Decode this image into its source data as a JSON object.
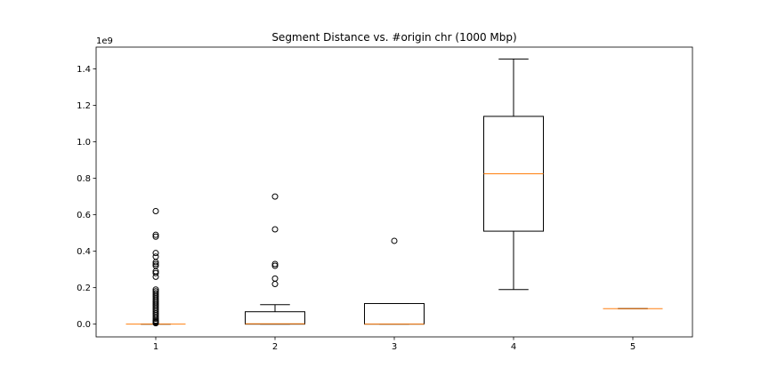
{
  "chart_data": {
    "type": "box",
    "title": "Segment Distance vs. #origin chr (1000 Mbp)",
    "xlabel": "",
    "ylabel": "",
    "y_offset_label": "1e9",
    "ylim": [
      -0.07,
      1.52
    ],
    "y_ticks": [
      0.0,
      0.2,
      0.4,
      0.6,
      0.8,
      1.0,
      1.2,
      1.4
    ],
    "y_tick_labels": [
      "0.0",
      "0.2",
      "0.4",
      "0.6",
      "0.8",
      "1.0",
      "1.2",
      "1.4"
    ],
    "categories": [
      "1",
      "2",
      "3",
      "4",
      "5"
    ],
    "box_color": "#000000",
    "median_color": "#ff7f0e",
    "boxes": [
      {
        "label": "1",
        "whislo": 0.0,
        "q1": 0.0,
        "med": 0.0,
        "q3": 0.0,
        "whishi": 0.0,
        "fliers": [
          0.005,
          0.01,
          0.015,
          0.02,
          0.03,
          0.04,
          0.05,
          0.06,
          0.07,
          0.08,
          0.09,
          0.1,
          0.11,
          0.12,
          0.13,
          0.14,
          0.15,
          0.16,
          0.17,
          0.18,
          0.19,
          0.26,
          0.28,
          0.29,
          0.32,
          0.33,
          0.34,
          0.37,
          0.39,
          0.48,
          0.49,
          0.62
        ]
      },
      {
        "label": "2",
        "whislo": 0.0,
        "q1": 0.0,
        "med": 0.002,
        "q3": 0.068,
        "whishi": 0.107,
        "fliers": [
          0.22,
          0.25,
          0.32,
          0.33,
          0.52,
          0.7
        ]
      },
      {
        "label": "3",
        "whislo": 0.0,
        "q1": 0.0,
        "med": 0.0,
        "q3": 0.113,
        "whishi": 0.113,
        "fliers": [
          0.457
        ]
      },
      {
        "label": "4",
        "whislo": 0.19,
        "q1": 0.51,
        "med": 0.825,
        "q3": 1.14,
        "whishi": 1.455,
        "fliers": []
      },
      {
        "label": "5",
        "whislo": 0.085,
        "q1": 0.085,
        "med": 0.085,
        "q3": 0.085,
        "whishi": 0.085,
        "fliers": []
      }
    ]
  }
}
